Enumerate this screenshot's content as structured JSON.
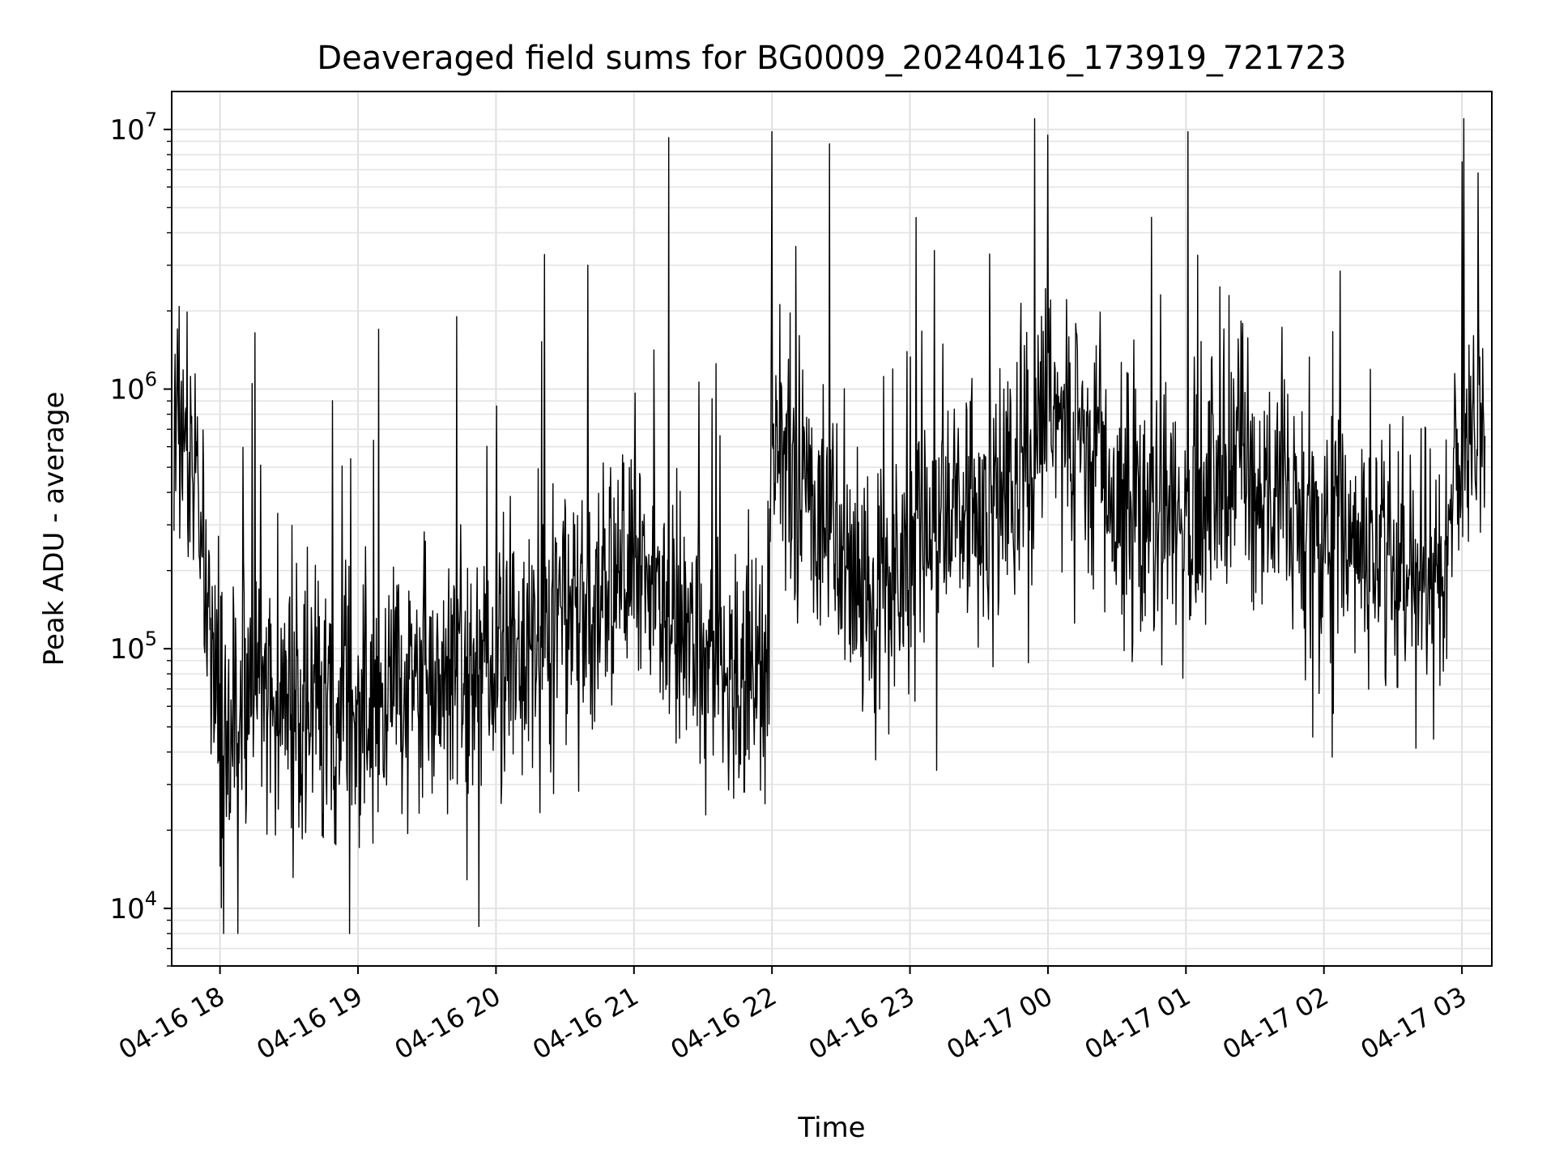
{
  "chart_data": {
    "type": "line",
    "title": "Deaveraged field sums for BG0009_20240416_173919_721723",
    "xlabel": "Time",
    "ylabel": "Peak ADU - average",
    "yscale": "log",
    "grid": true,
    "xlim": [
      "2024-04-16 17:39",
      "2024-04-17 03:13"
    ],
    "ylim": [
      6000,
      14000000
    ],
    "x_ticks": [
      "04-16 18",
      "04-16 19",
      "04-16 20",
      "04-16 21",
      "04-16 22",
      "04-16 23",
      "04-17 00",
      "04-17 01",
      "04-17 02",
      "04-17 03"
    ],
    "y_ticks": [
      {
        "value": 10000,
        "base": "10",
        "exp": "4"
      },
      {
        "value": 100000,
        "base": "10",
        "exp": "5"
      },
      {
        "value": 1000000,
        "base": "10",
        "exp": "6"
      },
      {
        "value": 10000000,
        "base": "10",
        "exp": "7"
      }
    ],
    "line_color": "#000000",
    "series": [
      {
        "x": [
          "2024-04-16 17:40",
          "2024-04-16 17:45",
          "2024-04-16 17:50",
          "2024-04-16 17:55",
          "2024-04-16 18:00",
          "2024-04-16 18:05",
          "2024-04-16 18:15",
          "2024-04-16 18:30",
          "2024-04-16 18:45",
          "2024-04-16 19:00",
          "2024-04-16 19:15",
          "2024-04-16 19:30",
          "2024-04-16 19:45",
          "2024-04-16 20:00",
          "2024-04-16 20:15",
          "2024-04-16 20:30",
          "2024-04-16 20:45",
          "2024-04-16 21:00",
          "2024-04-16 21:15",
          "2024-04-16 21:30",
          "2024-04-16 21:45",
          "2024-04-16 21:58",
          "2024-04-16 22:00",
          "2024-04-16 22:15",
          "2024-04-16 22:30",
          "2024-04-16 22:45",
          "2024-04-16 23:00",
          "2024-04-16 23:15",
          "2024-04-16 23:30",
          "2024-04-16 23:45",
          "2024-04-17 00:00",
          "2024-04-17 00:15",
          "2024-04-17 00:30",
          "2024-04-17 00:45",
          "2024-04-17 01:00",
          "2024-04-17 01:15",
          "2024-04-17 01:30",
          "2024-04-17 01:45",
          "2024-04-17 02:00",
          "2024-04-17 02:15",
          "2024-04-17 02:30",
          "2024-04-17 02:45",
          "2024-04-17 02:50",
          "2024-04-17 03:00",
          "2024-04-17 03:10"
        ],
        "values": [
          700000,
          600000,
          500000,
          150000,
          50000,
          60000,
          70000,
          65000,
          60000,
          60000,
          65000,
          75000,
          80000,
          90000,
          100000,
          130000,
          160000,
          220000,
          140000,
          100000,
          80000,
          90000,
          700000,
          400000,
          220000,
          180000,
          200000,
          320000,
          380000,
          450000,
          900000,
          600000,
          400000,
          350000,
          320000,
          550000,
          520000,
          350000,
          250000,
          230000,
          220000,
          210000,
          200000,
          600000,
          750000
        ]
      }
    ],
    "spikes": [
      {
        "x": "2024-04-16 18:14",
        "value": 1050000
      },
      {
        "x": "2024-04-16 19:09",
        "value": 1700000
      },
      {
        "x": "2024-04-16 19:43",
        "value": 1900000
      },
      {
        "x": "2024-04-16 20:21",
        "value": 3300000
      },
      {
        "x": "2024-04-16 20:40",
        "value": 3000000
      },
      {
        "x": "2024-04-16 21:15",
        "value": 9300000
      },
      {
        "x": "2024-04-16 22:00",
        "value": 9800000
      },
      {
        "x": "2024-04-16 22:25",
        "value": 8800000
      },
      {
        "x": "2024-04-17 00:00",
        "value": 9500000
      },
      {
        "x": "2024-04-17 01:01",
        "value": 9800000
      },
      {
        "x": "2024-04-17 03:00",
        "value": 7500000
      },
      {
        "x": "2024-04-17 03:07",
        "value": 6800000
      }
    ]
  }
}
